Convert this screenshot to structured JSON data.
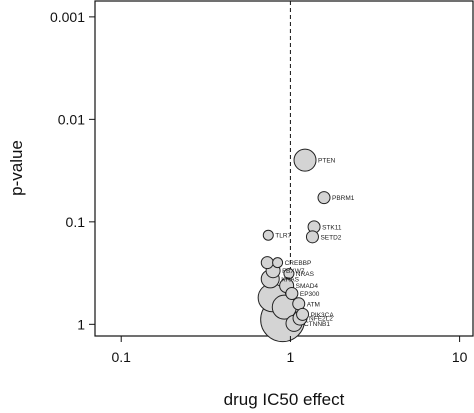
{
  "chart_data": {
    "type": "scatter",
    "title": "",
    "xlabel": "drug IC50 effect",
    "ylabel": "p-value",
    "x_scale": "log",
    "y_scale": "log",
    "y_inverted": true,
    "xlim": [
      0.07,
      12
    ],
    "ylim": [
      1.3,
      0.0007
    ],
    "x_ticks": [
      0.1,
      1,
      10
    ],
    "x_tick_labels": [
      "0.1",
      "1",
      "10"
    ],
    "y_ticks": [
      0.001,
      0.01,
      0.1,
      1
    ],
    "y_tick_labels": [
      "0.001",
      "0.01",
      "0.1",
      "1"
    ],
    "reference_line": {
      "x": 1,
      "style": "dashed"
    },
    "grid": false,
    "legend": "none",
    "marker_color": "#d4d4d4",
    "marker_edge_color": "#222222",
    "points": [
      {
        "x": 1.22,
        "y": 0.025,
        "size": 11,
        "label": "PTEN"
      },
      {
        "x": 1.58,
        "y": 0.058,
        "size": 6,
        "label": "PBRM1"
      },
      {
        "x": 1.38,
        "y": 0.112,
        "size": 6,
        "label": "STK11"
      },
      {
        "x": 1.35,
        "y": 0.14,
        "size": 6,
        "label": "SETD2"
      },
      {
        "x": 0.74,
        "y": 0.135,
        "size": 5,
        "label": "TLR7"
      },
      {
        "x": 0.73,
        "y": 0.25,
        "size": 6,
        "label": ""
      },
      {
        "x": 0.84,
        "y": 0.25,
        "size": 5,
        "label": "CREBBP"
      },
      {
        "x": 0.79,
        "y": 0.3,
        "size": 7,
        "label": "FBXW7"
      },
      {
        "x": 0.98,
        "y": 0.32,
        "size": 5,
        "label": "NRAS"
      },
      {
        "x": 0.76,
        "y": 0.36,
        "size": 9,
        "label": "KRAS"
      },
      {
        "x": 0.95,
        "y": 0.42,
        "size": 7,
        "label": "SMAD4"
      },
      {
        "x": 1.02,
        "y": 0.5,
        "size": 6,
        "label": "EP300"
      },
      {
        "x": 0.78,
        "y": 0.55,
        "size": 14,
        "label": ""
      },
      {
        "x": 1.12,
        "y": 0.63,
        "size": 6,
        "label": "ATM"
      },
      {
        "x": 0.92,
        "y": 0.68,
        "size": 12,
        "label": ""
      },
      {
        "x": 1.18,
        "y": 0.8,
        "size": 6,
        "label": "PIK3CA"
      },
      {
        "x": 1.14,
        "y": 0.87,
        "size": 7,
        "label": "NFE2L2"
      },
      {
        "x": 0.9,
        "y": 0.9,
        "size": 22,
        "label": ""
      },
      {
        "x": 1.05,
        "y": 0.98,
        "size": 8,
        "label": "CTNNB1"
      }
    ]
  }
}
